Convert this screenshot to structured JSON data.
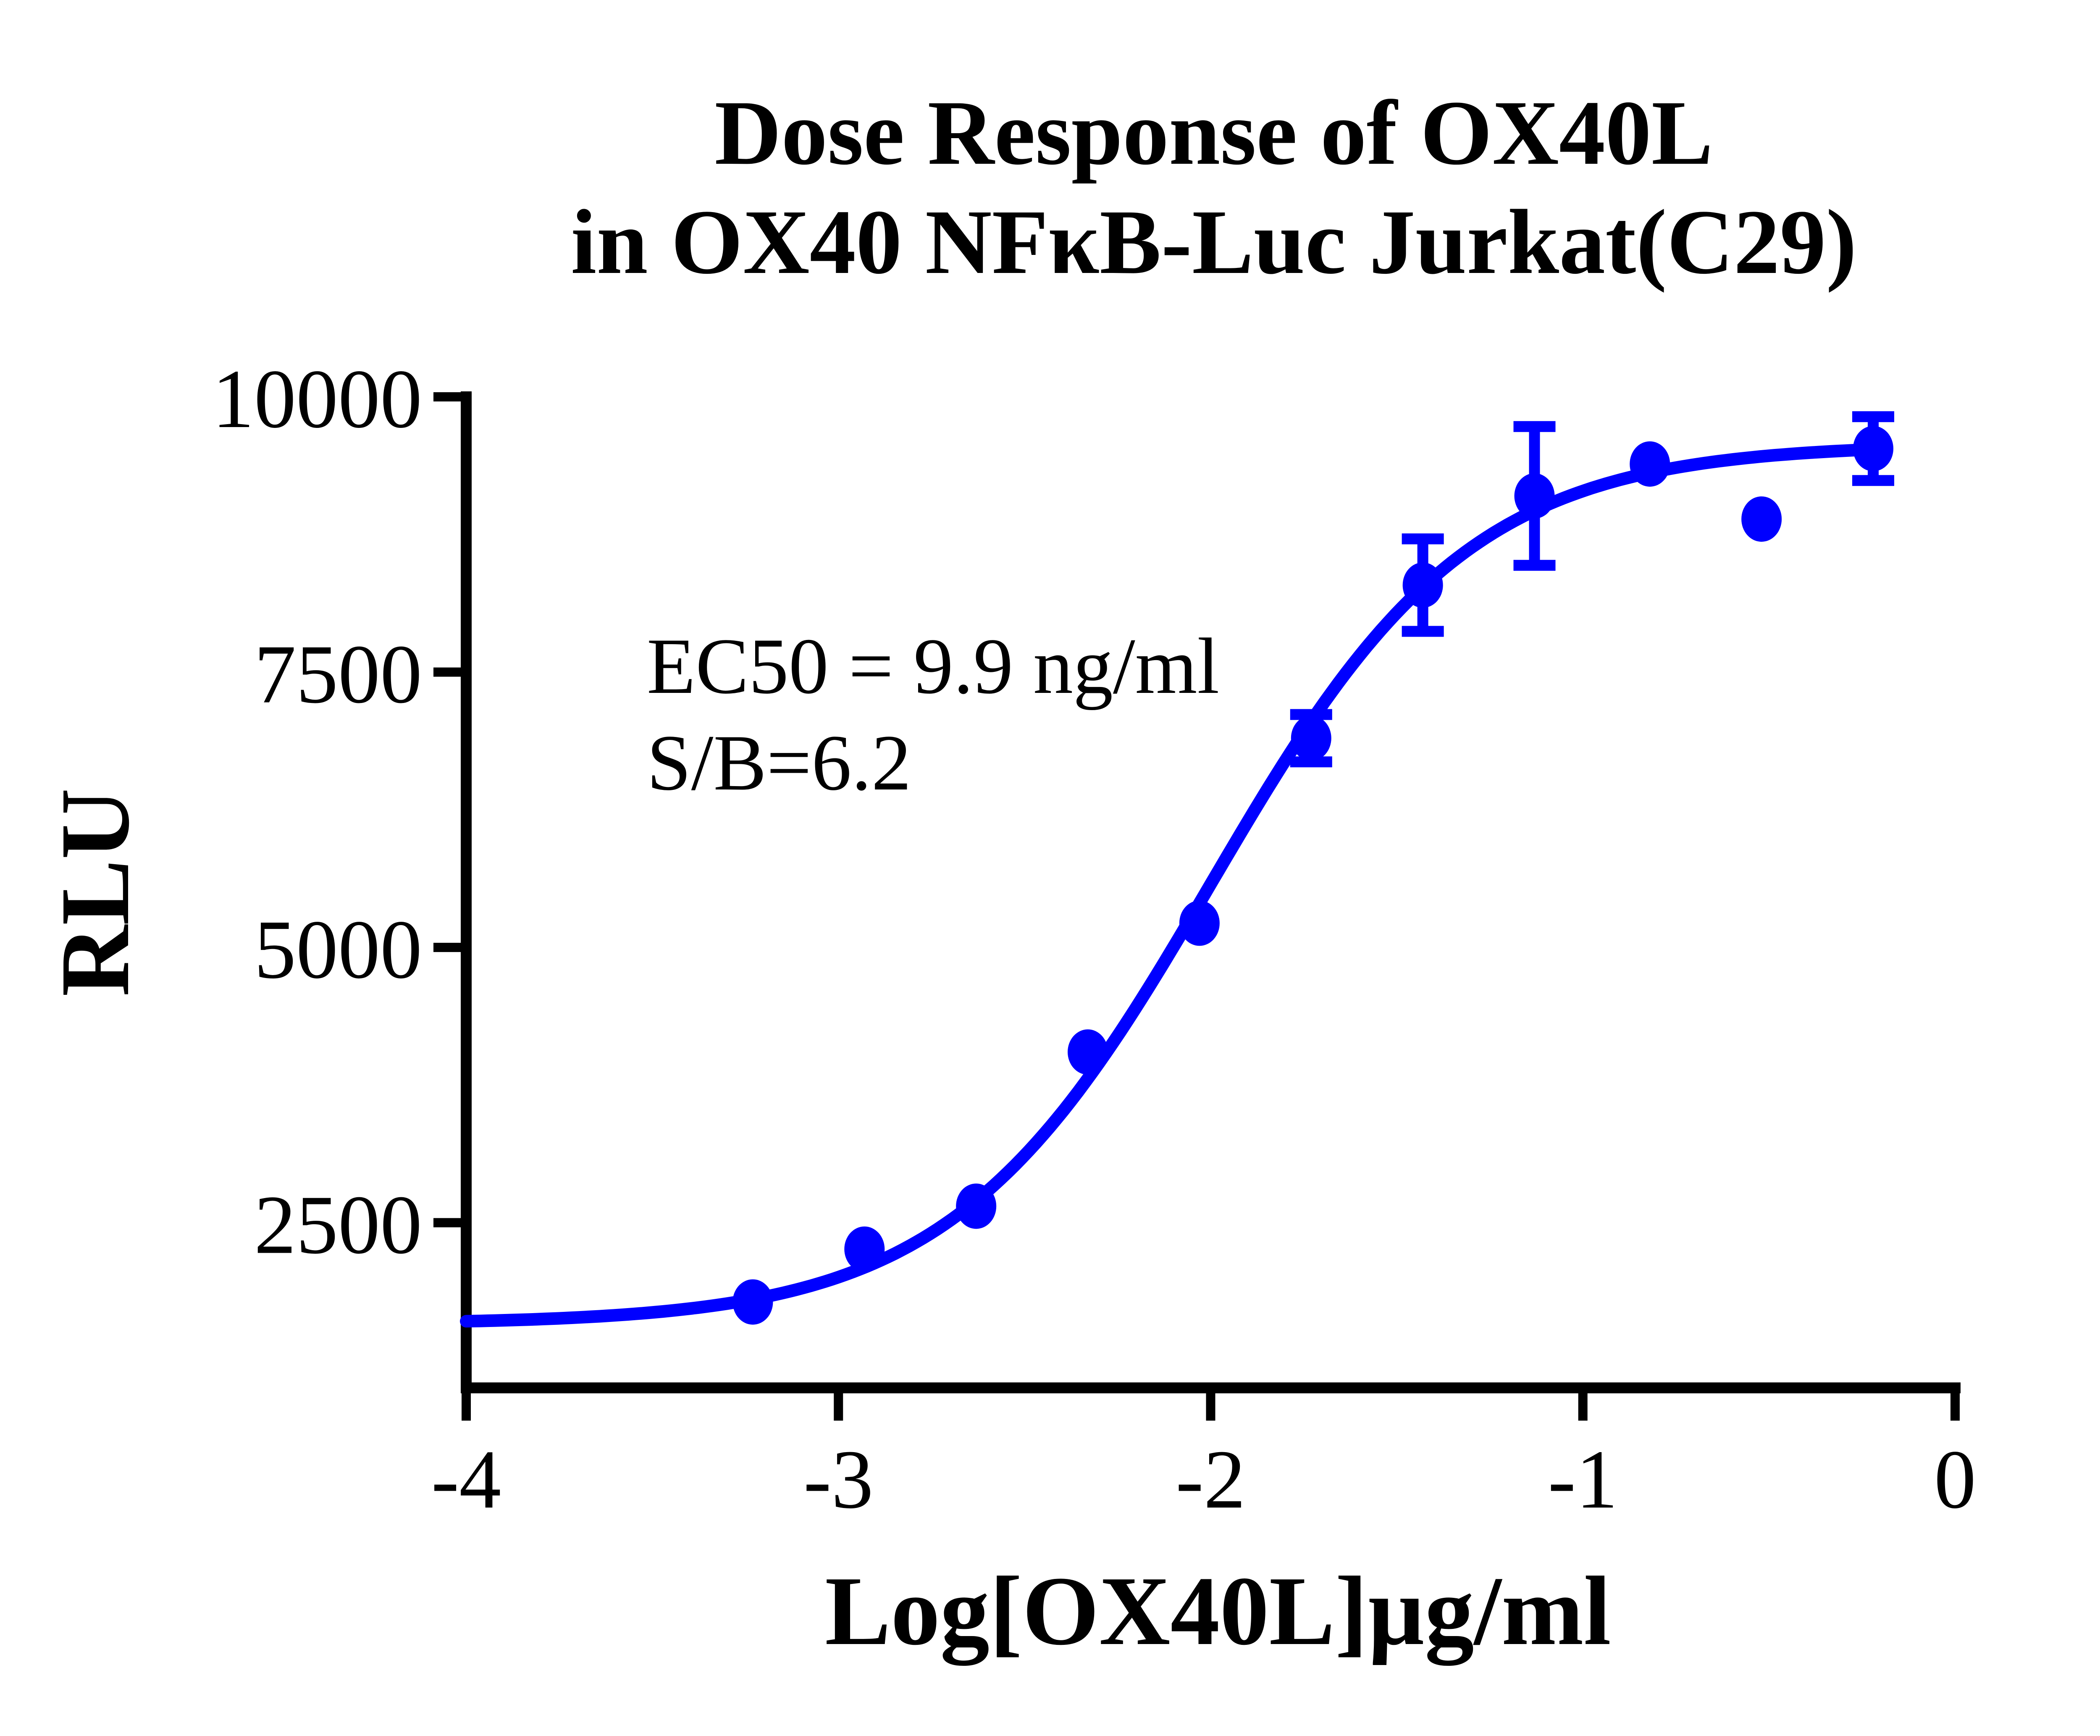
{
  "title": {
    "line1": "Dose Response of OX40L",
    "line2": "in OX40 NFκB-Luc Jurkat(C29)"
  },
  "annotation": {
    "line1": "EC50 = 9.9 ng/ml",
    "line2": "S/B=6.2"
  },
  "colors": {
    "curve": "#0000FF",
    "marker": "#0000FF",
    "axis": "#000000",
    "text": "#000000",
    "background": "#FFFFFF"
  },
  "chart_data": {
    "type": "scatter",
    "title": "Dose Response of OX40L in OX40 NFκB-Luc Jurkat(C29)",
    "xlabel": "Log[OX40L]µg/ml",
    "ylabel": "RLU",
    "xlim": [
      -4,
      0
    ],
    "ylim": [
      1000,
      10000
    ],
    "x_ticks": [
      -4,
      -3,
      -2,
      -1,
      0
    ],
    "x_tick_labels": [
      "-4",
      "-3",
      "-2",
      "-1",
      "0"
    ],
    "y_ticks": [
      2500,
      5000,
      7500,
      10000
    ],
    "y_tick_labels": [
      "2500",
      "5000",
      "7500",
      "10000"
    ],
    "grid": false,
    "legend": null,
    "annotations": [
      "EC50 = 9.9 ng/ml",
      "S/B=6.2"
    ],
    "series": [
      {
        "name": "OX40L",
        "color": "#0000FF",
        "x": [
          -3.23,
          -2.93,
          -2.63,
          -2.33,
          -2.03,
          -1.73,
          -1.43,
          -1.13,
          -0.82,
          -0.52,
          -0.22
        ],
        "y": [
          1780,
          2260,
          2650,
          4050,
          5220,
          6900,
          8290,
          9100,
          9390,
          8890,
          9530
        ],
        "yerr": [
          null,
          null,
          null,
          null,
          null,
          215,
          420,
          630,
          null,
          null,
          290
        ]
      }
    ],
    "fit_curve": {
      "model": "4PL",
      "bottom": 1580,
      "top": 9570,
      "logEC50": -2.0,
      "hill": 1.25,
      "x_start": -4,
      "x_end": -0.22
    },
    "ec50_ng_ml": 9.9,
    "signal_to_background": 6.2
  }
}
